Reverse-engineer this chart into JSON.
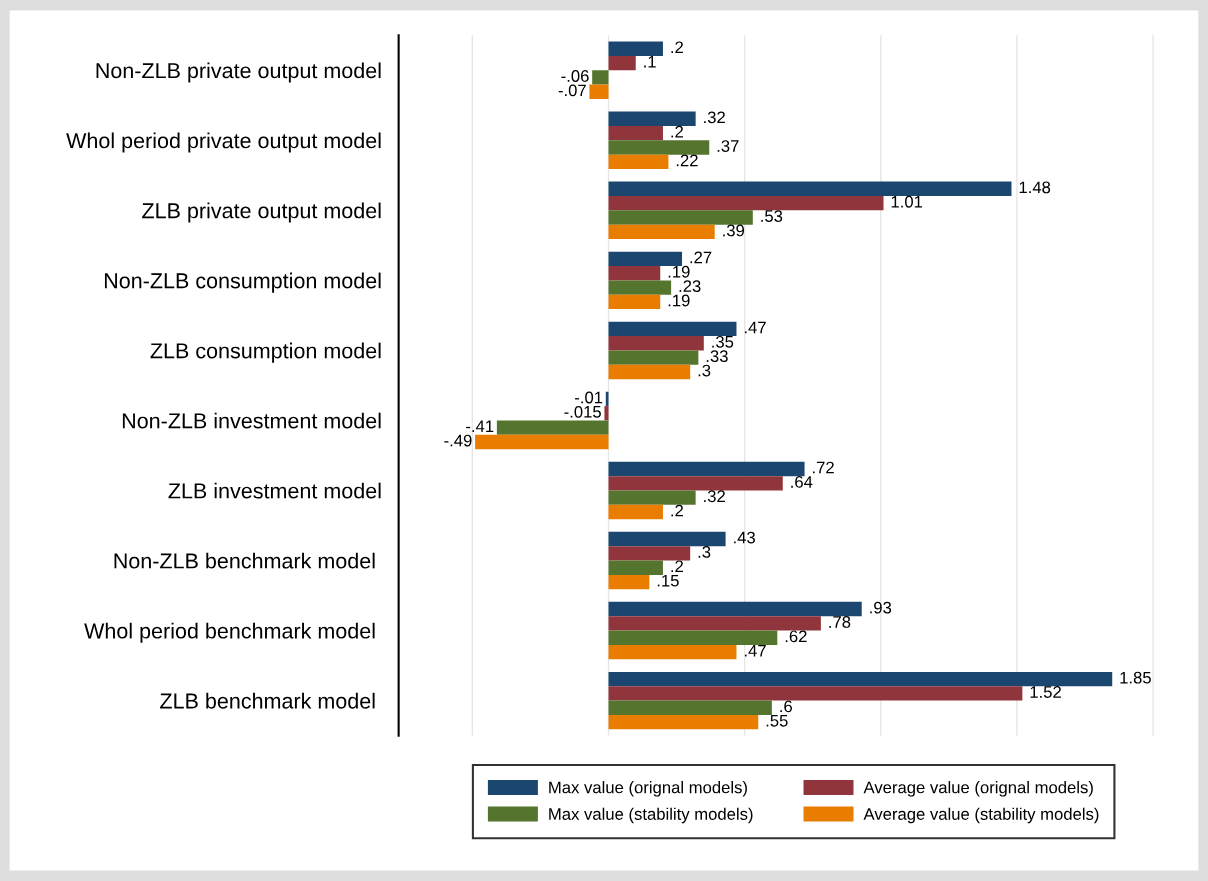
{
  "chart_data": {
    "type": "bar",
    "orientation": "horizontal",
    "categories": [
      "Non-ZLB private output model",
      "Whol period private output model",
      "ZLB private output model",
      "Non-ZLB consumption model",
      "ZLB consumption model",
      "Non-ZLB investment model",
      "ZLB investment model",
      "Non-ZLB benchmark model ",
      "Whol period benchmark model ",
      "ZLB benchmark model "
    ],
    "series": [
      {
        "name": "Max value (orignal models)",
        "color": "#1a4670",
        "values": [
          0.2,
          0.32,
          1.48,
          0.27,
          0.47,
          -0.01,
          0.72,
          0.43,
          0.93,
          1.85
        ],
        "value_labels": [
          ".2",
          ".32",
          "1.48",
          ".27",
          ".47",
          "-.01",
          ".72",
          ".43",
          ".93",
          "1.85"
        ]
      },
      {
        "name": "Average value (orignal models)",
        "color": "#90353b",
        "values": [
          0.1,
          0.2,
          1.01,
          0.19,
          0.35,
          -0.015,
          0.64,
          0.3,
          0.78,
          1.52
        ],
        "value_labels": [
          ".1",
          ".2",
          "1.01",
          ".19",
          ".35",
          "-.015",
          ".64",
          ".3",
          ".78",
          "1.52"
        ]
      },
      {
        "name": "Max value (stability models)",
        "color": "#55752f",
        "values": [
          -0.06,
          0.37,
          0.53,
          0.23,
          0.33,
          -0.41,
          0.32,
          0.2,
          0.62,
          0.6
        ],
        "value_labels": [
          "-.06",
          ".37",
          ".53",
          ".23",
          ".33",
          "-.41",
          ".32",
          ".2",
          ".62",
          ".6"
        ]
      },
      {
        "name": "Average value (stability models)",
        "color": "#e87d00",
        "values": [
          -0.07,
          0.22,
          0.39,
          0.19,
          0.3,
          -0.49,
          0.2,
          0.15,
          0.47,
          0.55
        ],
        "value_labels": [
          "-.07",
          ".22",
          ".39",
          ".19",
          ".3",
          "-.49",
          ".2",
          ".15",
          ".47",
          ".55"
        ]
      }
    ],
    "xticks": [
      {
        "value": -0.5,
        "label": null
      },
      {
        "value": 0,
        "label": null
      },
      {
        "value": 0.5,
        "label": null
      },
      {
        "value": 1,
        "label": null
      },
      {
        "value": 1.5,
        "label": null
      },
      {
        "value": 2,
        "label": null
      }
    ],
    "grid": "x",
    "legend": "bottom",
    "tick_labels": "y"
  }
}
